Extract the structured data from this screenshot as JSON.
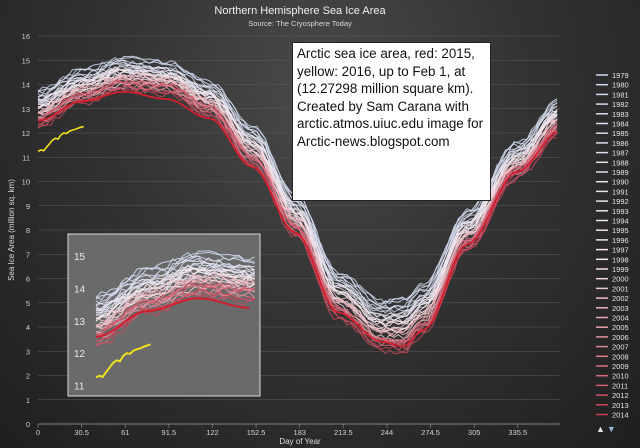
{
  "chart_data": {
    "type": "line",
    "title": "Northern Hemisphere Sea Ice Area",
    "subtitle": "Source: The Cryosphere Today",
    "xlabel": "Day of Year",
    "ylabel": "Sea Ice Area (million sq. km)",
    "xlim": [
      0,
      365
    ],
    "ylim": [
      0,
      16
    ],
    "xticks": [
      "0",
      "30.5",
      "61",
      "91.5",
      "122",
      "152.5",
      "183",
      "213.5",
      "244",
      "274.5",
      "305",
      "335.5"
    ],
    "xtick_values": [
      0,
      30.5,
      61,
      91.5,
      122,
      152.5,
      183,
      213.5,
      244,
      274.5,
      305,
      335.5
    ],
    "yticks": [
      "0",
      "1",
      "2",
      "3",
      "4",
      "5",
      "6",
      "7",
      "8",
      "9",
      "10",
      "11",
      "12",
      "13",
      "14",
      "15",
      "16"
    ],
    "legend": [
      "1979",
      "1980",
      "1981",
      "1982",
      "1983",
      "1984",
      "1985",
      "1986",
      "1987",
      "1988",
      "1989",
      "1990",
      "1991",
      "1992",
      "1993",
      "1994",
      "1995",
      "1996",
      "1997",
      "1998",
      "1999",
      "2000",
      "2001",
      "2002",
      "2003",
      "2004",
      "2005",
      "2006",
      "2007",
      "2008",
      "2009",
      "2010",
      "2011",
      "2012",
      "2013",
      "2014"
    ],
    "legend_placement": "right",
    "climatology_days": [
      0,
      30,
      60,
      90,
      120,
      150,
      180,
      210,
      240,
      255,
      270,
      300,
      335,
      365
    ],
    "climatology_old": [
      13.6,
      14.4,
      14.9,
      14.7,
      13.9,
      12.1,
      9.3,
      6.1,
      4.9,
      5.0,
      5.6,
      8.6,
      11.4,
      13.2
    ],
    "climatology_new": [
      12.3,
      13.3,
      13.8,
      13.7,
      12.8,
      10.7,
      7.8,
      4.4,
      3.1,
      3.0,
      3.8,
      7.2,
      10.2,
      12.0
    ],
    "series_2015": {
      "name": "2015",
      "color": "#d0202e",
      "x": [
        0,
        30,
        60,
        90,
        120,
        150,
        180,
        210,
        240,
        255,
        270,
        300,
        335,
        365
      ],
      "y": [
        12.5,
        13.3,
        13.7,
        13.4,
        12.6,
        10.6,
        7.9,
        4.6,
        3.4,
        3.2,
        3.9,
        7.4,
        10.4,
        12.1
      ]
    },
    "series_2016": {
      "name": "2016",
      "color": "#f0e020",
      "x": [
        0,
        2,
        4,
        6,
        8,
        10,
        12,
        14,
        16,
        18,
        20,
        22,
        24,
        26,
        28,
        30,
        32
      ],
      "y": [
        11.25,
        11.3,
        11.27,
        11.42,
        11.55,
        11.7,
        11.78,
        11.75,
        11.92,
        12.0,
        11.98,
        12.08,
        12.12,
        12.15,
        12.2,
        12.24,
        12.27
      ]
    },
    "inset": {
      "yticks": [
        "11",
        "12",
        "13",
        "14",
        "15"
      ],
      "ylim": [
        10.8,
        15.5
      ],
      "xlim": [
        0,
        91.5
      ]
    }
  },
  "annotation": {
    "text": "Arctic sea ice area, red: 2015, yellow: 2016, up to Feb 1, at (12.27298 million square km). Created by Sam Carana with arctic.atmos.uiuc.edu image for Arctic-news.blogspot.com"
  },
  "navigation": {
    "up": "▲",
    "down": "▼"
  }
}
